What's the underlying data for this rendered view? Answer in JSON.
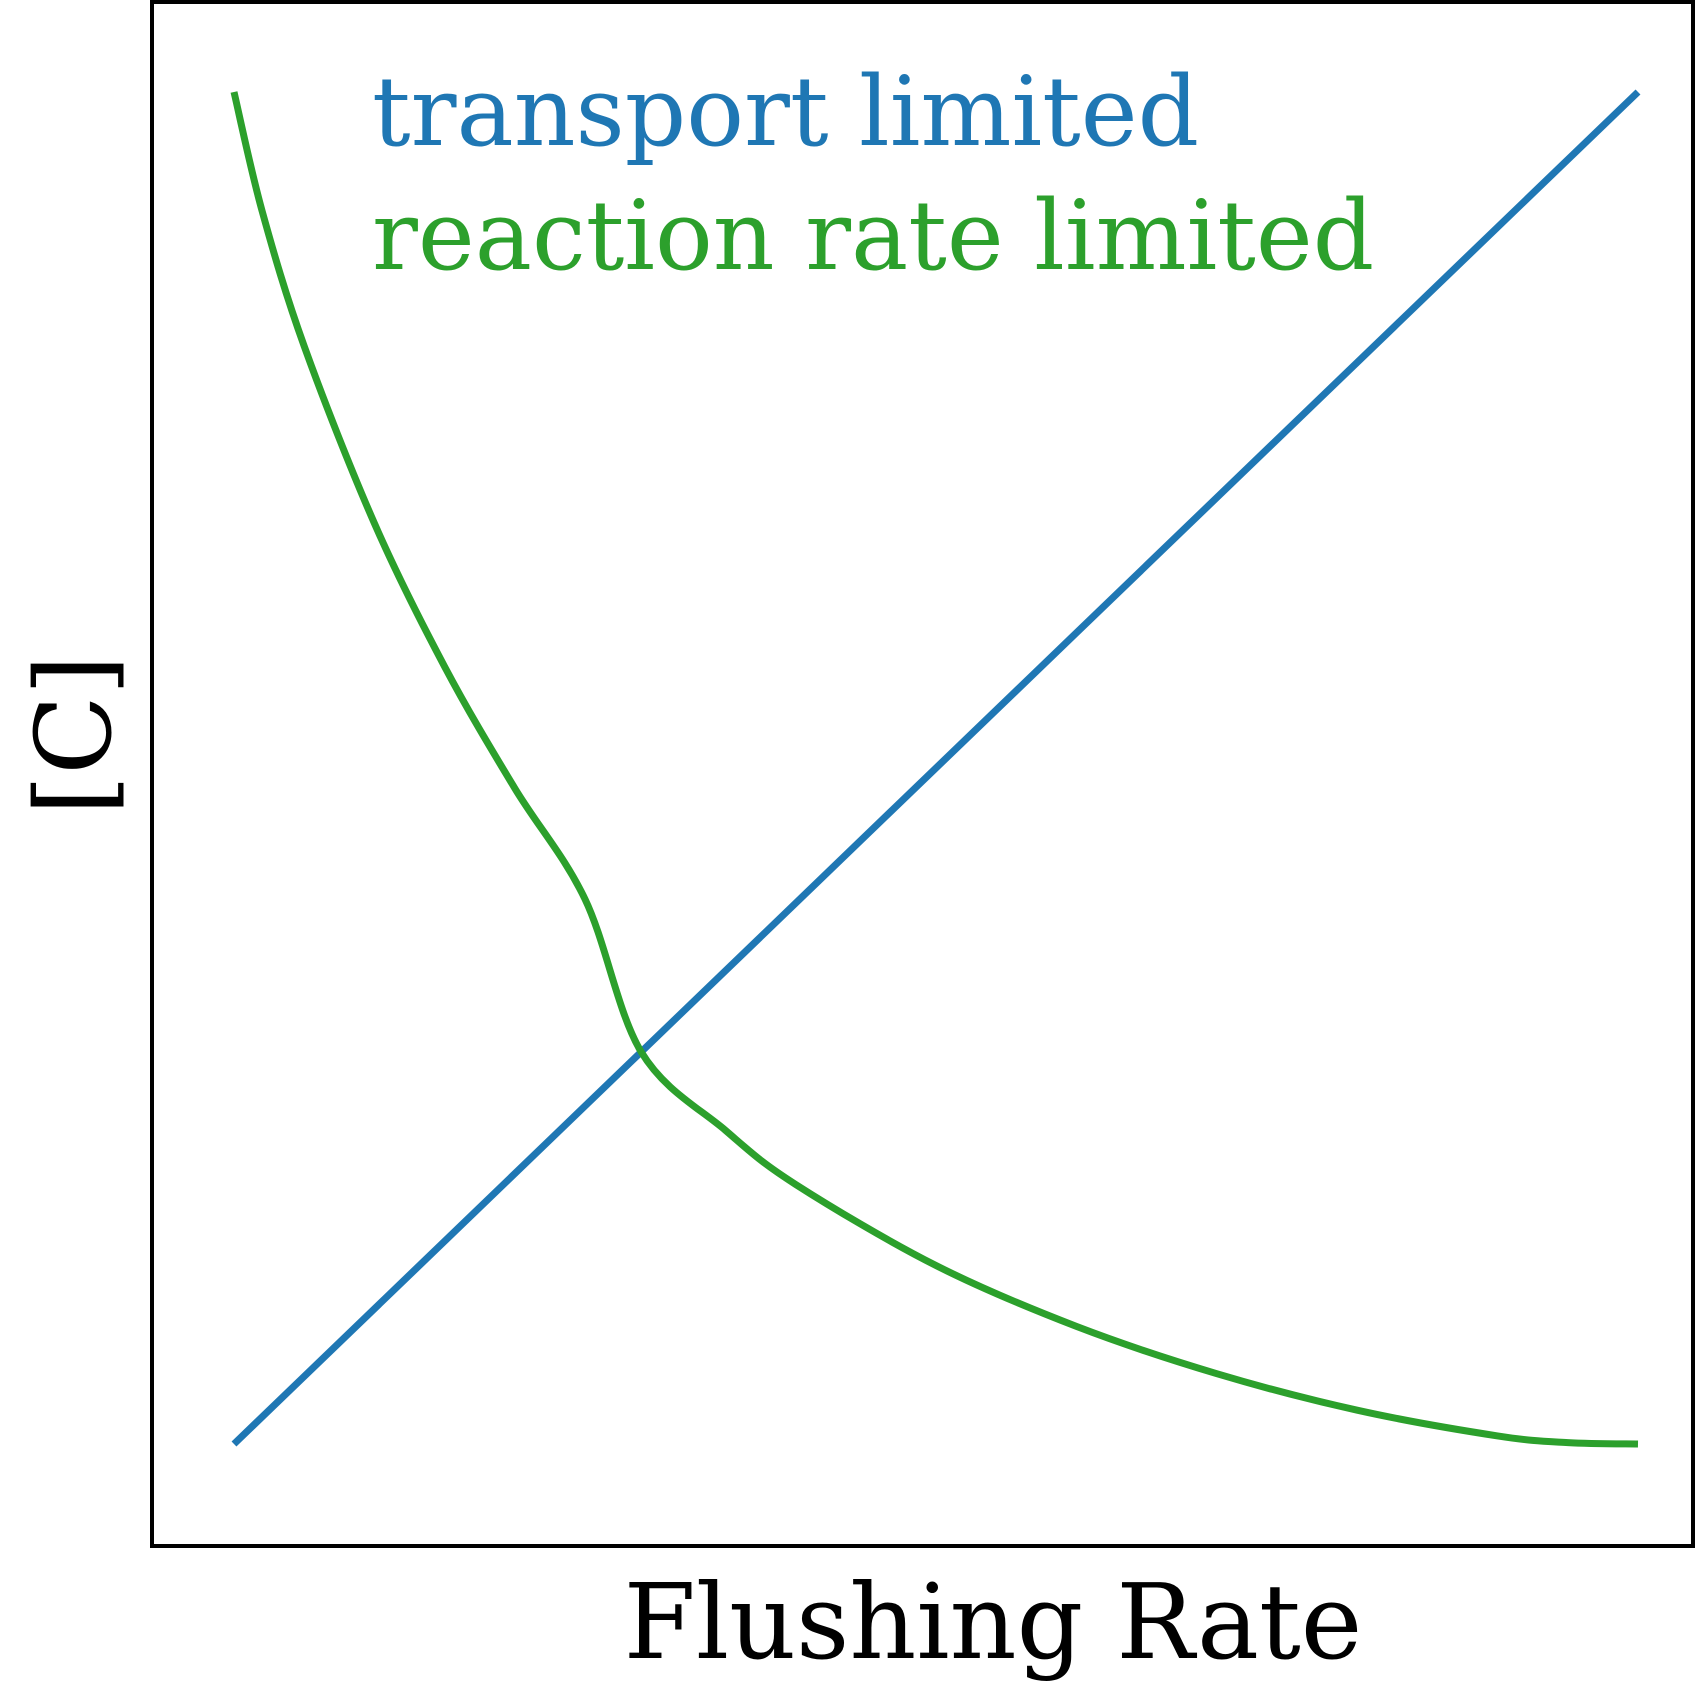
{
  "chart_data": {
    "type": "line",
    "title": "",
    "xlabel": "Flushing Rate",
    "ylabel": "[C]",
    "xlim": [
      0,
      1
    ],
    "ylim": [
      0,
      1
    ],
    "grid": false,
    "ticks": false,
    "legend_placement": "top-left",
    "series": [
      {
        "name": "transport limited",
        "color": "#1f77b4",
        "x": [
          0.0,
          1.0
        ],
        "y": [
          0.0,
          1.0
        ]
      },
      {
        "name": "reaction rate limited",
        "color": "#2ca02c",
        "x": [
          0.0,
          0.02,
          0.05,
          0.1,
          0.15,
          0.2,
          0.25,
          0.29,
          0.35,
          0.4,
          0.5,
          0.6,
          0.7,
          0.8,
          0.9,
          0.95,
          1.0
        ],
        "y": [
          1.0,
          0.912,
          0.812,
          0.681,
          0.575,
          0.485,
          0.403,
          0.29,
          0.232,
          0.192,
          0.132,
          0.087,
          0.052,
          0.025,
          0.006,
          0.001,
          0.0
        ]
      }
    ]
  }
}
